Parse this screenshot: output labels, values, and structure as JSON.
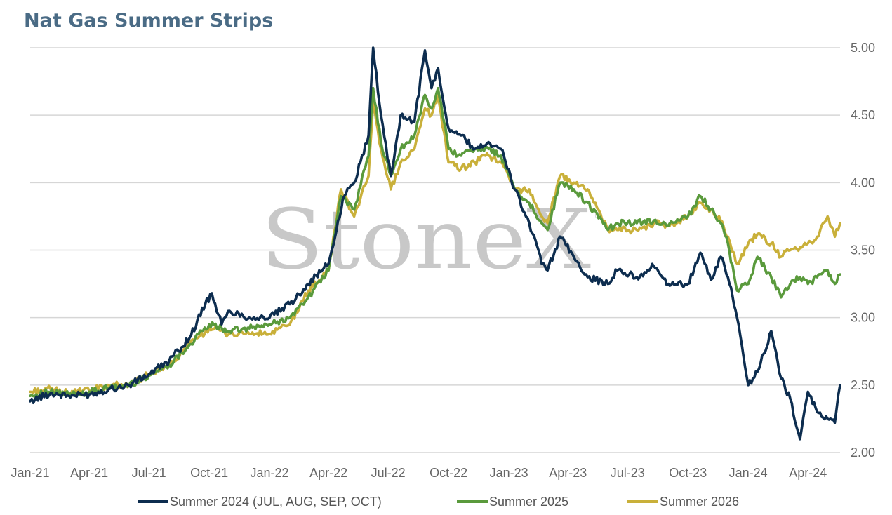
{
  "chart_data": {
    "type": "line",
    "title": "Nat Gas Summer Strips",
    "xlabel": "",
    "ylabel": "",
    "ylim": [
      2.0,
      5.0
    ],
    "y_ticks": [
      "5.00",
      "4.50",
      "4.00",
      "3.50",
      "3.00",
      "2.50",
      "2.00"
    ],
    "y_axis_side": "right",
    "x_range": [
      "2021-01-01",
      "2024-05-20"
    ],
    "x_ticks": [
      "Jan-21",
      "Apr-21",
      "Jul-21",
      "Oct-21",
      "Jan-22",
      "Apr-22",
      "Jul-22",
      "Oct-22",
      "Jan-23",
      "Apr-23",
      "Jul-23",
      "Oct-23",
      "Jan-24",
      "Apr-24"
    ],
    "x_tick_dates": [
      "2021-01-01",
      "2021-04-01",
      "2021-07-01",
      "2021-10-01",
      "2022-01-01",
      "2022-04-01",
      "2022-07-01",
      "2022-10-01",
      "2023-01-01",
      "2023-04-01",
      "2023-07-01",
      "2023-10-01",
      "2024-01-01",
      "2024-04-01"
    ],
    "grid": "horizontal",
    "legend_position": "bottom",
    "watermark": "StoneX",
    "series": [
      {
        "name": "Summer 2024 (JUL, AUG, SEP, OCT)",
        "color": "#0d2d4f",
        "points": [
          [
            "2021-01-01",
            2.38
          ],
          [
            "2021-02-01",
            2.44
          ],
          [
            "2021-03-01",
            2.42
          ],
          [
            "2021-04-01",
            2.43
          ],
          [
            "2021-05-01",
            2.47
          ],
          [
            "2021-06-01",
            2.5
          ],
          [
            "2021-07-01",
            2.58
          ],
          [
            "2021-08-01",
            2.68
          ],
          [
            "2021-09-01",
            2.85
          ],
          [
            "2021-09-25",
            3.1
          ],
          [
            "2021-10-05",
            3.18
          ],
          [
            "2021-10-20",
            2.95
          ],
          [
            "2021-11-01",
            3.05
          ],
          [
            "2021-12-01",
            3.0
          ],
          [
            "2022-01-01",
            3.0
          ],
          [
            "2022-02-01",
            3.1
          ],
          [
            "2022-03-01",
            3.25
          ],
          [
            "2022-04-01",
            3.4
          ],
          [
            "2022-04-25",
            3.9
          ],
          [
            "2022-05-10",
            4.0
          ],
          [
            "2022-06-01",
            4.35
          ],
          [
            "2022-06-08",
            5.0
          ],
          [
            "2022-06-20",
            4.5
          ],
          [
            "2022-07-05",
            4.05
          ],
          [
            "2022-07-20",
            4.5
          ],
          [
            "2022-08-10",
            4.45
          ],
          [
            "2022-08-26",
            4.98
          ],
          [
            "2022-09-05",
            4.7
          ],
          [
            "2022-09-15",
            4.85
          ],
          [
            "2022-10-01",
            4.4
          ],
          [
            "2022-10-20",
            4.35
          ],
          [
            "2022-11-10",
            4.25
          ],
          [
            "2022-12-01",
            4.3
          ],
          [
            "2022-12-20",
            4.25
          ],
          [
            "2023-01-10",
            3.95
          ],
          [
            "2023-02-01",
            3.7
          ],
          [
            "2023-02-20",
            3.4
          ],
          [
            "2023-03-01",
            3.35
          ],
          [
            "2023-03-20",
            3.6
          ],
          [
            "2023-04-10",
            3.45
          ],
          [
            "2023-05-01",
            3.3
          ],
          [
            "2023-06-01",
            3.25
          ],
          [
            "2023-06-15",
            3.35
          ],
          [
            "2023-07-15",
            3.3
          ],
          [
            "2023-08-10",
            3.38
          ],
          [
            "2023-09-01",
            3.25
          ],
          [
            "2023-10-01",
            3.25
          ],
          [
            "2023-10-20",
            3.48
          ],
          [
            "2023-11-05",
            3.28
          ],
          [
            "2023-11-20",
            3.45
          ],
          [
            "2023-12-01",
            3.3
          ],
          [
            "2023-12-15",
            3.0
          ],
          [
            "2024-01-01",
            2.5
          ],
          [
            "2024-01-15",
            2.6
          ],
          [
            "2024-02-05",
            2.9
          ],
          [
            "2024-02-20",
            2.55
          ],
          [
            "2024-03-05",
            2.4
          ],
          [
            "2024-03-20",
            2.1
          ],
          [
            "2024-04-01",
            2.45
          ],
          [
            "2024-04-15",
            2.3
          ],
          [
            "2024-05-01",
            2.25
          ],
          [
            "2024-05-12",
            2.22
          ],
          [
            "2024-05-20",
            2.5
          ]
        ]
      },
      {
        "name": "Summer 2025",
        "color": "#5a9a3c",
        "points": [
          [
            "2021-01-01",
            2.42
          ],
          [
            "2021-02-01",
            2.45
          ],
          [
            "2021-03-01",
            2.43
          ],
          [
            "2021-04-01",
            2.45
          ],
          [
            "2021-05-01",
            2.48
          ],
          [
            "2021-06-01",
            2.5
          ],
          [
            "2021-07-01",
            2.57
          ],
          [
            "2021-08-01",
            2.65
          ],
          [
            "2021-09-01",
            2.8
          ],
          [
            "2021-10-01",
            2.95
          ],
          [
            "2021-11-01",
            2.9
          ],
          [
            "2021-12-01",
            2.92
          ],
          [
            "2022-01-01",
            2.95
          ],
          [
            "2022-02-01",
            3.0
          ],
          [
            "2022-03-01",
            3.15
          ],
          [
            "2022-04-01",
            3.35
          ],
          [
            "2022-04-20",
            3.9
          ],
          [
            "2022-05-10",
            3.8
          ],
          [
            "2022-06-01",
            4.2
          ],
          [
            "2022-06-08",
            4.7
          ],
          [
            "2022-06-20",
            4.3
          ],
          [
            "2022-07-05",
            4.05
          ],
          [
            "2022-07-20",
            4.25
          ],
          [
            "2022-08-10",
            4.35
          ],
          [
            "2022-08-26",
            4.65
          ],
          [
            "2022-09-05",
            4.55
          ],
          [
            "2022-09-15",
            4.7
          ],
          [
            "2022-10-01",
            4.25
          ],
          [
            "2022-10-20",
            4.2
          ],
          [
            "2022-11-10",
            4.25
          ],
          [
            "2022-12-01",
            4.25
          ],
          [
            "2022-12-20",
            4.2
          ],
          [
            "2023-01-10",
            3.95
          ],
          [
            "2023-02-01",
            3.85
          ],
          [
            "2023-02-20",
            3.7
          ],
          [
            "2023-03-01",
            3.65
          ],
          [
            "2023-03-20",
            4.0
          ],
          [
            "2023-04-10",
            3.95
          ],
          [
            "2023-05-01",
            3.85
          ],
          [
            "2023-06-01",
            3.65
          ],
          [
            "2023-06-15",
            3.7
          ],
          [
            "2023-07-15",
            3.7
          ],
          [
            "2023-08-10",
            3.72
          ],
          [
            "2023-09-01",
            3.68
          ],
          [
            "2023-10-01",
            3.75
          ],
          [
            "2023-10-20",
            3.9
          ],
          [
            "2023-11-05",
            3.8
          ],
          [
            "2023-11-20",
            3.7
          ],
          [
            "2023-12-01",
            3.55
          ],
          [
            "2023-12-15",
            3.2
          ],
          [
            "2024-01-01",
            3.25
          ],
          [
            "2024-01-15",
            3.45
          ],
          [
            "2024-02-05",
            3.3
          ],
          [
            "2024-02-20",
            3.15
          ],
          [
            "2024-03-05",
            3.25
          ],
          [
            "2024-03-20",
            3.3
          ],
          [
            "2024-04-01",
            3.25
          ],
          [
            "2024-04-15",
            3.3
          ],
          [
            "2024-05-01",
            3.35
          ],
          [
            "2024-05-12",
            3.25
          ],
          [
            "2024-05-20",
            3.32
          ]
        ]
      },
      {
        "name": "Summer 2026",
        "color": "#c9b03a",
        "points": [
          [
            "2021-01-01",
            2.45
          ],
          [
            "2021-02-01",
            2.47
          ],
          [
            "2021-03-01",
            2.44
          ],
          [
            "2021-04-01",
            2.46
          ],
          [
            "2021-05-01",
            2.5
          ],
          [
            "2021-06-01",
            2.5
          ],
          [
            "2021-07-01",
            2.58
          ],
          [
            "2021-08-01",
            2.65
          ],
          [
            "2021-09-01",
            2.8
          ],
          [
            "2021-10-01",
            2.92
          ],
          [
            "2021-11-01",
            2.88
          ],
          [
            "2021-12-01",
            2.88
          ],
          [
            "2022-01-01",
            2.88
          ],
          [
            "2022-02-01",
            2.95
          ],
          [
            "2022-03-01",
            3.2
          ],
          [
            "2022-04-01",
            3.35
          ],
          [
            "2022-04-20",
            3.95
          ],
          [
            "2022-05-10",
            3.75
          ],
          [
            "2022-06-01",
            4.05
          ],
          [
            "2022-06-08",
            4.6
          ],
          [
            "2022-06-20",
            4.25
          ],
          [
            "2022-07-05",
            3.95
          ],
          [
            "2022-07-20",
            4.15
          ],
          [
            "2022-08-10",
            4.25
          ],
          [
            "2022-08-26",
            4.55
          ],
          [
            "2022-09-05",
            4.5
          ],
          [
            "2022-09-15",
            4.65
          ],
          [
            "2022-10-01",
            4.15
          ],
          [
            "2022-10-20",
            4.1
          ],
          [
            "2022-11-10",
            4.15
          ],
          [
            "2022-12-01",
            4.2
          ],
          [
            "2022-12-20",
            4.15
          ],
          [
            "2023-01-10",
            3.95
          ],
          [
            "2023-02-01",
            3.95
          ],
          [
            "2023-02-20",
            3.75
          ],
          [
            "2023-03-01",
            3.7
          ],
          [
            "2023-03-20",
            4.05
          ],
          [
            "2023-04-10",
            4.0
          ],
          [
            "2023-05-01",
            3.95
          ],
          [
            "2023-06-01",
            3.65
          ],
          [
            "2023-06-15",
            3.65
          ],
          [
            "2023-07-15",
            3.65
          ],
          [
            "2023-08-10",
            3.7
          ],
          [
            "2023-09-01",
            3.68
          ],
          [
            "2023-10-01",
            3.75
          ],
          [
            "2023-10-20",
            3.85
          ],
          [
            "2023-11-05",
            3.8
          ],
          [
            "2023-11-20",
            3.72
          ],
          [
            "2023-12-01",
            3.6
          ],
          [
            "2023-12-15",
            3.4
          ],
          [
            "2024-01-01",
            3.55
          ],
          [
            "2024-01-15",
            3.62
          ],
          [
            "2024-02-05",
            3.55
          ],
          [
            "2024-02-20",
            3.45
          ],
          [
            "2024-03-05",
            3.5
          ],
          [
            "2024-03-20",
            3.52
          ],
          [
            "2024-04-01",
            3.55
          ],
          [
            "2024-04-15",
            3.6
          ],
          [
            "2024-05-01",
            3.75
          ],
          [
            "2024-05-12",
            3.6
          ],
          [
            "2024-05-20",
            3.7
          ]
        ]
      }
    ]
  }
}
